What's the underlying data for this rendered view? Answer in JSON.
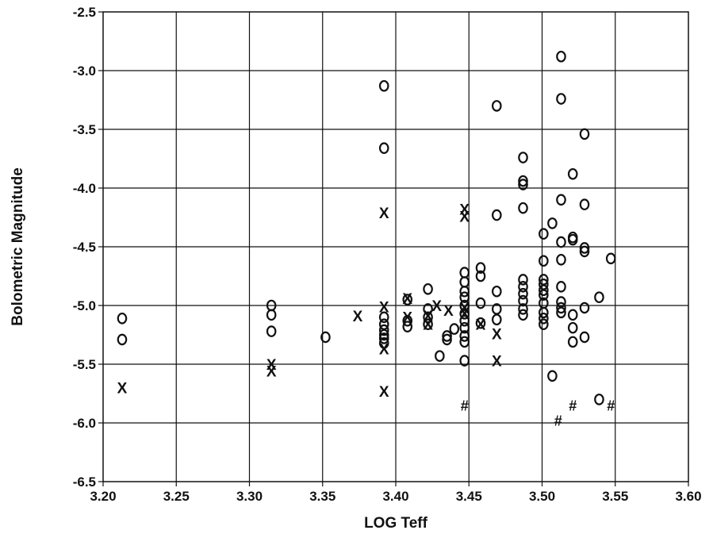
{
  "chart_data": {
    "type": "scatter",
    "title": "",
    "xlabel": "LOG Teff",
    "ylabel": "Bolometric Magnitude",
    "xlim": [
      3.2,
      3.6
    ],
    "ylim": [
      -6.5,
      -2.5
    ],
    "y_reversed": true,
    "grid": true,
    "legend": "none",
    "x_ticks": [
      "3.20",
      "3.25",
      "3.30",
      "3.35",
      "3.40",
      "3.45",
      "3.50",
      "3.55",
      "3.60"
    ],
    "y_ticks": [
      "-2.5",
      "-3.0",
      "-3.5",
      "-4.0",
      "-4.5",
      "-5.0",
      "-5.5",
      "-6.0",
      "-6.5"
    ],
    "series": [
      {
        "marker": "o",
        "points": [
          [
            3.213,
            -5.11
          ],
          [
            3.213,
            -5.29
          ],
          [
            3.315,
            -5.0
          ],
          [
            3.315,
            -5.08
          ],
          [
            3.315,
            -5.22
          ],
          [
            3.352,
            -5.27
          ],
          [
            3.392,
            -3.13
          ],
          [
            3.392,
            -3.66
          ],
          [
            3.392,
            -5.1
          ],
          [
            3.392,
            -5.16
          ],
          [
            3.392,
            -5.21
          ],
          [
            3.392,
            -5.25
          ],
          [
            3.392,
            -5.28
          ],
          [
            3.392,
            -5.32
          ],
          [
            3.408,
            -4.95
          ],
          [
            3.408,
            -5.13
          ],
          [
            3.408,
            -5.18
          ],
          [
            3.422,
            -4.86
          ],
          [
            3.422,
            -5.03
          ],
          [
            3.422,
            -5.1
          ],
          [
            3.422,
            -5.16
          ],
          [
            3.43,
            -5.43
          ],
          [
            3.435,
            -5.26
          ],
          [
            3.435,
            -5.29
          ],
          [
            3.44,
            -5.2
          ],
          [
            3.447,
            -4.72
          ],
          [
            3.447,
            -4.8
          ],
          [
            3.447,
            -4.88
          ],
          [
            3.447,
            -4.93
          ],
          [
            3.447,
            -5.0
          ],
          [
            3.447,
            -5.07
          ],
          [
            3.447,
            -5.13
          ],
          [
            3.447,
            -5.19
          ],
          [
            3.447,
            -5.26
          ],
          [
            3.447,
            -5.31
          ],
          [
            3.447,
            -5.47
          ],
          [
            3.458,
            -4.68
          ],
          [
            3.458,
            -4.75
          ],
          [
            3.458,
            -4.98
          ],
          [
            3.458,
            -5.15
          ],
          [
            3.469,
            -3.3
          ],
          [
            3.469,
            -4.23
          ],
          [
            3.469,
            -4.88
          ],
          [
            3.469,
            -5.03
          ],
          [
            3.469,
            -5.12
          ],
          [
            3.487,
            -3.74
          ],
          [
            3.487,
            -3.94
          ],
          [
            3.487,
            -3.97
          ],
          [
            3.487,
            -4.17
          ],
          [
            3.487,
            -4.78
          ],
          [
            3.487,
            -4.84
          ],
          [
            3.487,
            -4.9
          ],
          [
            3.487,
            -4.96
          ],
          [
            3.487,
            -5.03
          ],
          [
            3.487,
            -5.08
          ],
          [
            3.501,
            -4.39
          ],
          [
            3.501,
            -4.62
          ],
          [
            3.501,
            -4.78
          ],
          [
            3.501,
            -4.82
          ],
          [
            3.501,
            -4.87
          ],
          [
            3.501,
            -4.91
          ],
          [
            3.501,
            -4.98
          ],
          [
            3.501,
            -5.06
          ],
          [
            3.501,
            -5.11
          ],
          [
            3.501,
            -5.16
          ],
          [
            3.507,
            -4.3
          ],
          [
            3.507,
            -5.6
          ],
          [
            3.513,
            -2.88
          ],
          [
            3.513,
            -3.24
          ],
          [
            3.513,
            -4.1
          ],
          [
            3.513,
            -4.46
          ],
          [
            3.513,
            -4.61
          ],
          [
            3.513,
            -4.84
          ],
          [
            3.513,
            -4.97
          ],
          [
            3.513,
            -5.02
          ],
          [
            3.513,
            -5.06
          ],
          [
            3.521,
            -3.88
          ],
          [
            3.521,
            -4.42
          ],
          [
            3.521,
            -4.44
          ],
          [
            3.521,
            -5.08
          ],
          [
            3.521,
            -5.19
          ],
          [
            3.521,
            -5.31
          ],
          [
            3.529,
            -3.54
          ],
          [
            3.529,
            -4.14
          ],
          [
            3.529,
            -4.51
          ],
          [
            3.529,
            -4.54
          ],
          [
            3.529,
            -5.02
          ],
          [
            3.529,
            -5.27
          ],
          [
            3.539,
            -4.93
          ],
          [
            3.539,
            -5.8
          ],
          [
            3.547,
            -4.6
          ]
        ]
      },
      {
        "marker": "X",
        "points": [
          [
            3.213,
            -5.7
          ],
          [
            3.315,
            -5.5
          ],
          [
            3.315,
            -5.56
          ],
          [
            3.374,
            -5.09
          ],
          [
            3.392,
            -4.21
          ],
          [
            3.392,
            -5.01
          ],
          [
            3.392,
            -5.37
          ],
          [
            3.392,
            -5.73
          ],
          [
            3.408,
            -4.94
          ],
          [
            3.408,
            -5.1
          ],
          [
            3.422,
            -5.09
          ],
          [
            3.422,
            -5.16
          ],
          [
            3.428,
            -5.0
          ],
          [
            3.436,
            -5.04
          ],
          [
            3.447,
            -4.18
          ],
          [
            3.447,
            -4.24
          ],
          [
            3.447,
            -5.02
          ],
          [
            3.447,
            -5.07
          ],
          [
            3.458,
            -5.16
          ],
          [
            3.469,
            -5.24
          ],
          [
            3.469,
            -5.47
          ]
        ]
      },
      {
        "marker": "#",
        "points": [
          [
            3.447,
            -5.85
          ],
          [
            3.511,
            -5.98
          ],
          [
            3.521,
            -5.85
          ],
          [
            3.547,
            -5.85
          ]
        ]
      }
    ]
  }
}
